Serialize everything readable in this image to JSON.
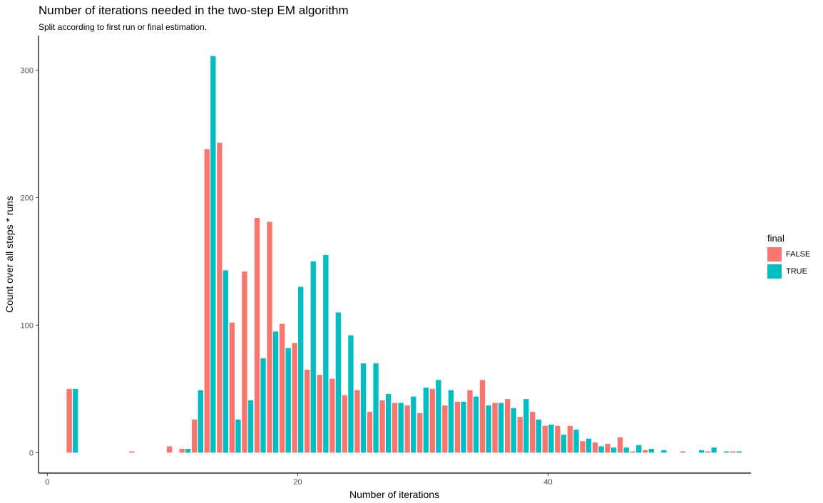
{
  "chart_data": {
    "type": "bar",
    "title": "Number of iterations needed in the two-step EM algorithm",
    "subtitle": "Split according to first run or final estimation.",
    "xlabel": "Number of iterations",
    "ylabel": "Count over all steps * runs",
    "xlim": [
      -0.7,
      56.2
    ],
    "ylim": [
      -16,
      327
    ],
    "xticks": [
      0,
      20,
      40
    ],
    "yticks": [
      0,
      100,
      200,
      300
    ],
    "grid": false,
    "legend": {
      "title": "final",
      "position": "right"
    },
    "series": [
      {
        "name": "FALSE",
        "color": "#F8766D",
        "values": [
          [
            2,
            50
          ],
          [
            7,
            1
          ],
          [
            10,
            5
          ],
          [
            11,
            3
          ],
          [
            12,
            26
          ],
          [
            13,
            238
          ],
          [
            14,
            243
          ],
          [
            15,
            102
          ],
          [
            16,
            142
          ],
          [
            17,
            184
          ],
          [
            18,
            181
          ],
          [
            19,
            101
          ],
          [
            20,
            86
          ],
          [
            21,
            65
          ],
          [
            22,
            61
          ],
          [
            23,
            58
          ],
          [
            24,
            45
          ],
          [
            25,
            49
          ],
          [
            26,
            32
          ],
          [
            27,
            41
          ],
          [
            28,
            39
          ],
          [
            29,
            37
          ],
          [
            30,
            31
          ],
          [
            31,
            50
          ],
          [
            32,
            37
          ],
          [
            33,
            40
          ],
          [
            34,
            49
          ],
          [
            35,
            57
          ],
          [
            36,
            39
          ],
          [
            37,
            42
          ],
          [
            38,
            28
          ],
          [
            39,
            32
          ],
          [
            40,
            21
          ],
          [
            41,
            21
          ],
          [
            42,
            21
          ],
          [
            43,
            9
          ],
          [
            44,
            8
          ],
          [
            45,
            7
          ],
          [
            46,
            12
          ],
          [
            47,
            1
          ],
          [
            48,
            2
          ],
          [
            51,
            1
          ],
          [
            53,
            1
          ],
          [
            55,
            1
          ]
        ]
      },
      {
        "name": "TRUE",
        "color": "#00BFC4",
        "values": [
          [
            2,
            50
          ],
          [
            11,
            3
          ],
          [
            12,
            49
          ],
          [
            13,
            311
          ],
          [
            14,
            143
          ],
          [
            15,
            26
          ],
          [
            16,
            41
          ],
          [
            17,
            74
          ],
          [
            18,
            95
          ],
          [
            19,
            82
          ],
          [
            20,
            130
          ],
          [
            21,
            150
          ],
          [
            22,
            155
          ],
          [
            23,
            110
          ],
          [
            24,
            92
          ],
          [
            25,
            70
          ],
          [
            26,
            70
          ],
          [
            27,
            46
          ],
          [
            28,
            39
          ],
          [
            29,
            44
          ],
          [
            30,
            51
          ],
          [
            31,
            57
          ],
          [
            32,
            49
          ],
          [
            33,
            40
          ],
          [
            34,
            44
          ],
          [
            35,
            37
          ],
          [
            36,
            39
          ],
          [
            37,
            35
          ],
          [
            38,
            42
          ],
          [
            39,
            26
          ],
          [
            40,
            22
          ],
          [
            41,
            14
          ],
          [
            42,
            18
          ],
          [
            43,
            11
          ],
          [
            44,
            5
          ],
          [
            45,
            4
          ],
          [
            46,
            4
          ],
          [
            47,
            6
          ],
          [
            48,
            3
          ],
          [
            49,
            2
          ],
          [
            52,
            2
          ],
          [
            53,
            4
          ],
          [
            54,
            1
          ],
          [
            55,
            1
          ]
        ]
      }
    ]
  }
}
